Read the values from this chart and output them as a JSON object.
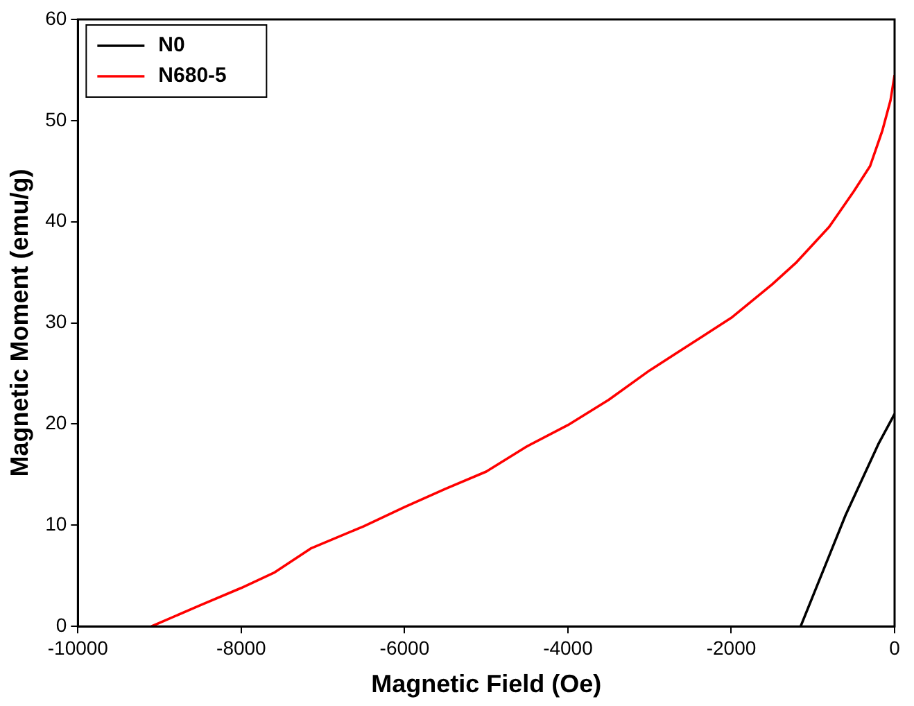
{
  "chart_data": {
    "type": "line",
    "xlabel": "Magnetic Field (Oe)",
    "ylabel": "Magnetic Moment (emu/g)",
    "xlim": [
      -10000,
      0
    ],
    "xticks": [
      -10000,
      -8000,
      -6000,
      -4000,
      -2000,
      0
    ],
    "ylim": [
      0,
      60
    ],
    "yticks": [
      0,
      10,
      20,
      30,
      40,
      50,
      60
    ],
    "grid": false,
    "legend": "top left",
    "marker": "none",
    "line_style": "solid",
    "series": [
      {
        "name": "N0",
        "color": "#000000",
        "x": [
          -1150,
          -1000,
          -800,
          -600,
          -400,
          -200,
          0
        ],
        "values": [
          0,
          3,
          7,
          11,
          14.5,
          18,
          21
        ]
      },
      {
        "name": "N680-5",
        "color": "#ff0000",
        "x": [
          -9100,
          -8500,
          -8000,
          -7600,
          -7150,
          -6500,
          -6000,
          -5500,
          -5000,
          -4500,
          -4000,
          -3500,
          -3000,
          -2500,
          -2000,
          -1500,
          -1200,
          -800,
          -500,
          -300,
          -150,
          -50,
          0
        ],
        "values": [
          0,
          2.1,
          3.8,
          5.3,
          7.7,
          9.9,
          11.8,
          13.6,
          15.3,
          17.8,
          19.9,
          22.4,
          25.3,
          27.9,
          30.5,
          33.8,
          36,
          39.5,
          43,
          45.5,
          49,
          52,
          54.5
        ]
      }
    ]
  }
}
